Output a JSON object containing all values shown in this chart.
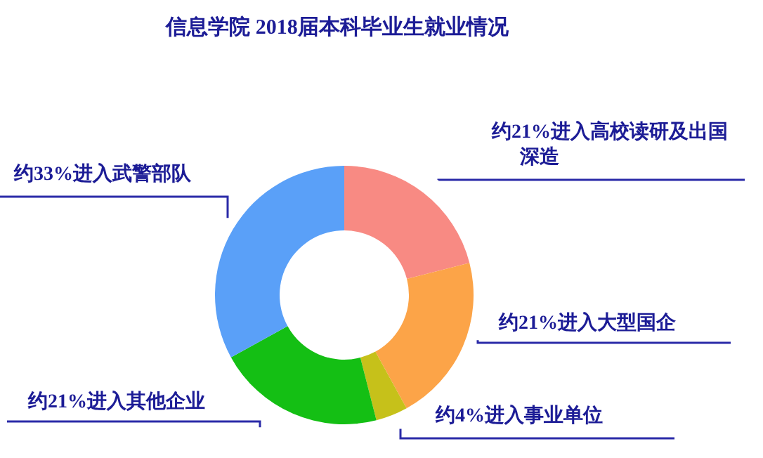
{
  "chart_data": {
    "type": "donut",
    "title": "信息学院 2018届本科毕业生就业情况",
    "categories": [
      "约21%进入高校读研及出国深造",
      "约21%进入大型国企",
      "约4%进入事业单位",
      "约21%进入其他企业",
      "约33%进入武警部队"
    ],
    "values": [
      21,
      21,
      4,
      21,
      33
    ],
    "colors": [
      "#f88a83",
      "#fca448",
      "#c6c11a",
      "#14bf14",
      "#5aa0f8"
    ]
  }
}
